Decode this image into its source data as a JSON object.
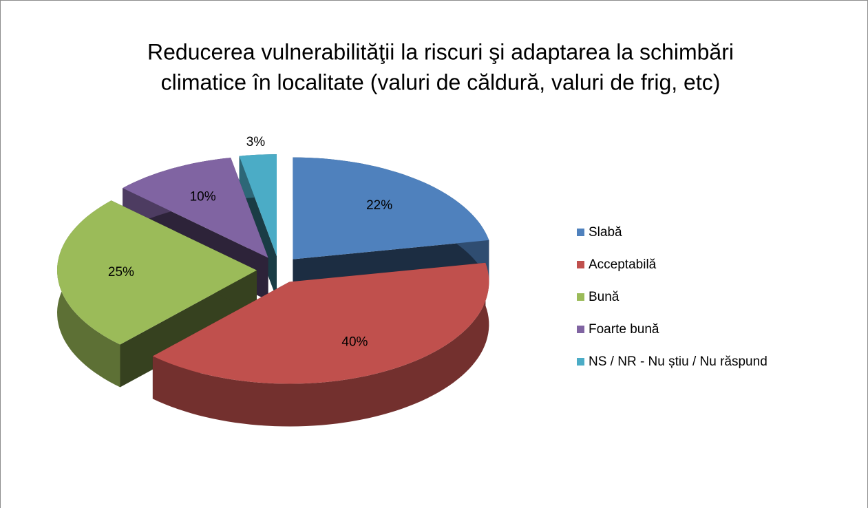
{
  "chart_data": {
    "type": "pie3d",
    "title": [
      "Reducerea vulnerabilităţii la riscuri şi adaptarea la schimbări",
      "climatice în localitate (valuri de căldură, valuri de frig, etc)"
    ],
    "categories": [
      "Slabă",
      "Acceptabilă",
      "Bună",
      "Foarte bună",
      "NS / NR - Nu știu / Nu răspund"
    ],
    "values": [
      22,
      40,
      25,
      10,
      3
    ],
    "value_labels": [
      "22%",
      "40%",
      "25%",
      "10%",
      "3%"
    ],
    "colors": [
      "#4f81bd",
      "#c0504d",
      "#9bbb59",
      "#8064a2",
      "#4bacc6"
    ],
    "legend": "right"
  }
}
